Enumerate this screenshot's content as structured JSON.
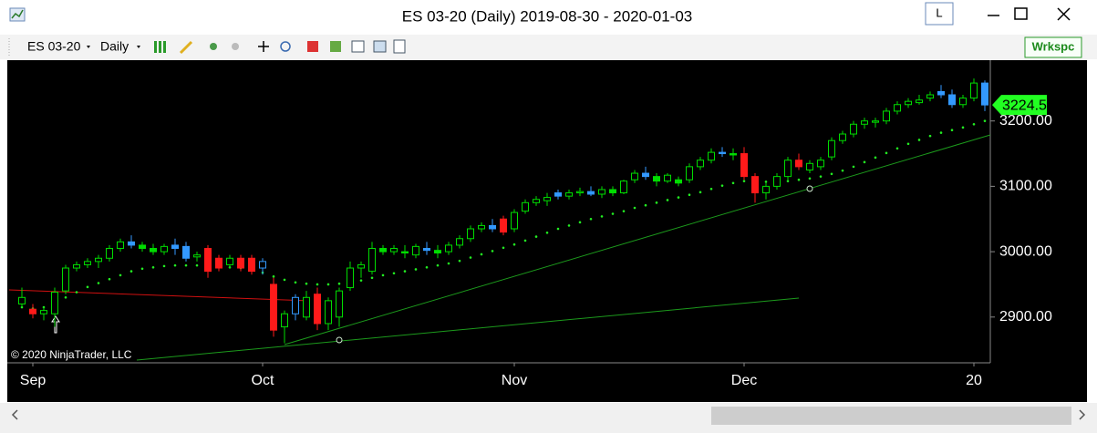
{
  "window": {
    "title": "ES 03-20 (Daily)  2019-08-30 - 2020-01-03",
    "button": "L"
  },
  "toolbar": {
    "instrument": "ES 03-20",
    "period": "Daily",
    "workspace": "Wrkspc"
  },
  "copyright": "© 2020 NinjaTrader, LLC",
  "chart_data": {
    "type": "candlestick",
    "categories": [
      null,
      "Sep",
      null,
      null,
      null,
      null,
      null,
      null,
      null,
      null,
      null,
      null,
      null,
      null,
      null,
      null,
      null,
      null,
      null,
      null,
      null,
      null,
      "Oct",
      null,
      null,
      null,
      null,
      null,
      null,
      null,
      null,
      null,
      null,
      null,
      null,
      null,
      null,
      null,
      null,
      null,
      null,
      null,
      null,
      null,
      null,
      "Nov",
      null,
      null,
      null,
      null,
      null,
      null,
      null,
      null,
      null,
      null,
      null,
      null,
      null,
      null,
      null,
      null,
      null,
      null,
      null,
      null,
      "Dec",
      null,
      null,
      null,
      null,
      null,
      null,
      null,
      null,
      null,
      null,
      null,
      null,
      null,
      null,
      null,
      null,
      null,
      null,
      null,
      null,
      "20",
      null
    ],
    "open": [
      2920,
      2912,
      2905,
      2905,
      2940,
      2975,
      2980,
      2985,
      2990,
      3005,
      3015,
      3010,
      3005,
      3000,
      3010,
      3008,
      2992,
      3005,
      2990,
      2980,
      2990,
      2990,
      2975,
      2950,
      2885,
      2905,
      2900,
      2935,
      2890,
      2900,
      2945,
      2975,
      2970,
      3005,
      3000,
      3000,
      2995,
      3005,
      3002,
      3000,
      3010,
      3020,
      3035,
      3040,
      3050,
      3035,
      3062,
      3075,
      3078,
      3090,
      3085,
      3090,
      3092,
      3088,
      3095,
      3090,
      3110,
      3120,
      3115,
      3108,
      3110,
      3110,
      3130,
      3140,
      3152,
      3150,
      3150,
      3115,
      3090,
      3100,
      3115,
      3140,
      3125,
      3130,
      3145,
      3170,
      3180,
      3195,
      3198,
      3200,
      3215,
      3225,
      3228,
      3235,
      3245,
      3240,
      3225,
      3235,
      3258
    ],
    "high": [
      2945,
      2920,
      2915,
      2945,
      2980,
      2985,
      2990,
      2995,
      3010,
      3020,
      3025,
      3015,
      3012,
      3012,
      3020,
      3015,
      3000,
      3010,
      2995,
      2995,
      2995,
      2995,
      2990,
      2960,
      2910,
      2935,
      2940,
      2945,
      2930,
      2945,
      2985,
      2985,
      3015,
      3010,
      3010,
      3010,
      3012,
      3015,
      3010,
      3015,
      3025,
      3040,
      3045,
      3050,
      3055,
      3065,
      3080,
      3085,
      3090,
      3095,
      3095,
      3098,
      3100,
      3100,
      3100,
      3110,
      3125,
      3130,
      3120,
      3120,
      3115,
      3135,
      3145,
      3158,
      3160,
      3158,
      3160,
      3120,
      3105,
      3120,
      3145,
      3150,
      3140,
      3145,
      3175,
      3185,
      3200,
      3205,
      3205,
      3220,
      3230,
      3235,
      3240,
      3245,
      3255,
      3248,
      3240,
      3265,
      3262
    ],
    "low": [
      2915,
      2898,
      2895,
      2885,
      2935,
      2970,
      2975,
      2975,
      2985,
      3000,
      3005,
      3000,
      2995,
      2995,
      2995,
      2985,
      2985,
      2960,
      2970,
      2975,
      2970,
      2965,
      2965,
      2870,
      2860,
      2895,
      2895,
      2880,
      2880,
      2885,
      2940,
      2960,
      2965,
      2995,
      2995,
      2990,
      2990,
      2995,
      2990,
      2995,
      3005,
      3015,
      3030,
      3030,
      3025,
      3030,
      3058,
      3070,
      3070,
      3080,
      3080,
      3085,
      3085,
      3082,
      3085,
      3088,
      3105,
      3110,
      3100,
      3105,
      3100,
      3105,
      3125,
      3135,
      3145,
      3140,
      3110,
      3075,
      3080,
      3095,
      3110,
      3125,
      3120,
      3125,
      3140,
      3165,
      3175,
      3188,
      3190,
      3195,
      3210,
      3220,
      3225,
      3230,
      3235,
      3220,
      3220,
      3230,
      3215
    ],
    "close": [
      2930,
      2905,
      2910,
      2938,
      2975,
      2980,
      2985,
      2990,
      3005,
      3015,
      3010,
      3005,
      3000,
      3008,
      3005,
      2990,
      2995,
      2970,
      2975,
      2990,
      2975,
      2970,
      2985,
      2880,
      2905,
      2930,
      2930,
      2890,
      2925,
      2940,
      2975,
      2980,
      3005,
      3000,
      3005,
      2998,
      3008,
      3002,
      2998,
      3010,
      3020,
      3035,
      3040,
      3035,
      3030,
      3060,
      3075,
      3080,
      3083,
      3085,
      3090,
      3092,
      3088,
      3095,
      3090,
      3108,
      3120,
      3115,
      3108,
      3117,
      3105,
      3130,
      3140,
      3152,
      3150,
      3148,
      3115,
      3090,
      3100,
      3115,
      3140,
      3130,
      3135,
      3140,
      3170,
      3180,
      3195,
      3200,
      3200,
      3215,
      3225,
      3230,
      3232,
      3240,
      3240,
      3225,
      3235,
      3258,
      3224.5
    ],
    "colors": [
      "#00dd00",
      "#ff1a1a",
      "#00dd00",
      "#00dd00",
      "#00dd00",
      "#00dd00",
      "#00dd00",
      "#00dd00",
      "#00dd00",
      "#00dd00",
      "#3399ff",
      "#00dd00",
      "#00dd00",
      "#00dd00",
      "#3399ff",
      "#3399ff",
      "#00dd00",
      "#ff1a1a",
      "#ff1a1a",
      "#00dd00",
      "#ff1a1a",
      "#ff1a1a",
      "#3399ff",
      "#ff1a1a",
      "#00dd00",
      "#3399ff",
      "#00dd00",
      "#ff1a1a",
      "#00dd00",
      "#00dd00",
      "#00dd00",
      "#00dd00",
      "#00dd00",
      "#00dd00",
      "#00dd00",
      "#00dd00",
      "#00dd00",
      "#3399ff",
      "#00dd00",
      "#00dd00",
      "#00dd00",
      "#00dd00",
      "#00dd00",
      "#3399ff",
      "#ff1a1a",
      "#00dd00",
      "#00dd00",
      "#00dd00",
      "#00dd00",
      "#3399ff",
      "#00dd00",
      "#00dd00",
      "#3399ff",
      "#00dd00",
      "#00dd00",
      "#00dd00",
      "#00dd00",
      "#3399ff",
      "#00dd00",
      "#00dd00",
      "#00dd00",
      "#00dd00",
      "#00dd00",
      "#00dd00",
      "#3399ff",
      "#00dd00",
      "#ff1a1a",
      "#ff1a1a",
      "#00dd00",
      "#00dd00",
      "#00dd00",
      "#ff1a1a",
      "#00dd00",
      "#00dd00",
      "#00dd00",
      "#00dd00",
      "#00dd00",
      "#00dd00",
      "#00dd00",
      "#00dd00",
      "#00dd00",
      "#00dd00",
      "#00dd00",
      "#00dd00",
      "#3399ff",
      "#3399ff",
      "#00dd00",
      "#00dd00",
      "#3399ff"
    ],
    "ma": {
      "color": "#22ee22",
      "values": [
        2915,
        2913,
        2915,
        2920,
        2930,
        2938,
        2946,
        2952,
        2958,
        2964,
        2970,
        2974,
        2976,
        2978,
        2979,
        2979,
        2979,
        2978,
        2977,
        2976,
        2975,
        2972,
        2968,
        2962,
        2957,
        2953,
        2951,
        2950,
        2950,
        2951,
        2953,
        2956,
        2960,
        2964,
        2967,
        2970,
        2973,
        2976,
        2979,
        2982,
        2986,
        2991,
        2996,
        3001,
        3006,
        3011,
        3017,
        3023,
        3029,
        3035,
        3040,
        3045,
        3050,
        3054,
        3058,
        3062,
        3067,
        3071,
        3075,
        3079,
        3083,
        3087,
        3091,
        3096,
        3101,
        3105,
        3108,
        3108,
        3107,
        3107,
        3108,
        3110,
        3112,
        3115,
        3119,
        3124,
        3130,
        3137,
        3144,
        3151,
        3158,
        3165,
        3171,
        3177,
        3182,
        3186,
        3190,
        3195,
        3200
      ]
    },
    "ylim": [
      2830,
      3293
    ],
    "yticks": [
      {
        "value": 2900,
        "label": "2900.00"
      },
      {
        "value": 3000,
        "label": "3000.00"
      },
      {
        "value": 3100,
        "label": "3100.00"
      },
      {
        "value": 3200,
        "label": "3200.00"
      }
    ],
    "last_price": 3224.5,
    "last_price_label": "3224.50",
    "last_price_color": "#22ff22"
  }
}
